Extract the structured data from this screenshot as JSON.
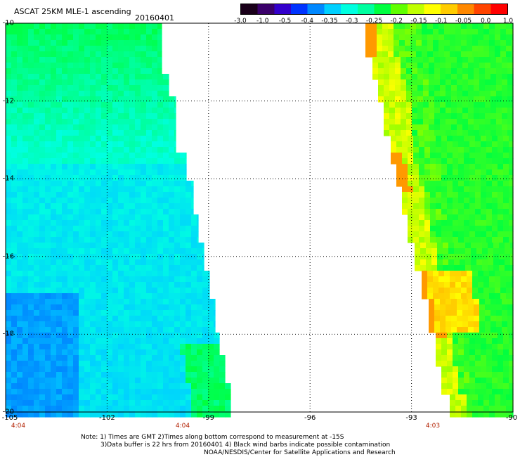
{
  "header": {
    "title": "ASCAT 25KM MLE-1 ascending",
    "date": "20160401"
  },
  "colorbar": {
    "labels": [
      "-3.0",
      "-1.0",
      "-0.5",
      "-0.4",
      "-0.35",
      "-0.3",
      "-0.25",
      "-0.2",
      "-0.15",
      "-0.1",
      "-0.05",
      "0.0",
      "1.0"
    ],
    "colors": [
      "#1a001a",
      "#3a006a",
      "#3300cc",
      "#0033ff",
      "#0088ff",
      "#00d0ff",
      "#00ffe0",
      "#00ffa0",
      "#00ff40",
      "#60ff00",
      "#c0ff00",
      "#ffff00",
      "#ffcc00",
      "#ff8800",
      "#ff4400",
      "#ff0000"
    ]
  },
  "axes": {
    "lat_labels": [
      "-10",
      "-12",
      "-14",
      "-16",
      "-18",
      "-20"
    ],
    "lat_values": [
      -10,
      -12,
      -14,
      -16,
      -18,
      -20
    ],
    "lon_labels": [
      "-105",
      "-102",
      "-99",
      "-96",
      "-93",
      "-90"
    ],
    "lon_values": [
      -105,
      -102,
      -99,
      -96,
      -93,
      -90
    ],
    "lat_range": [
      -20,
      -10
    ],
    "lon_range": [
      -105,
      -90
    ]
  },
  "swath_times": [
    "4:04",
    "4:04",
    "4:03"
  ],
  "notes": [
    "Note: 1) Times are GMT 2)Times along bottom correspond to measurement at -15S",
    "3)Data buffer is 22 hrs from 20160401 4) Black wind barbs indicate possible contamination",
    "NOAA/NESDIS/Center for Satellite Applications and Research"
  ],
  "colors": {
    "cyan": "#00ffe0",
    "sky": "#00d0ff",
    "blue": "#0088ff",
    "green": "#00ff40",
    "yellowgreen": "#80ff00",
    "yellow": "#ffff00",
    "orange": "#ff9900"
  }
}
